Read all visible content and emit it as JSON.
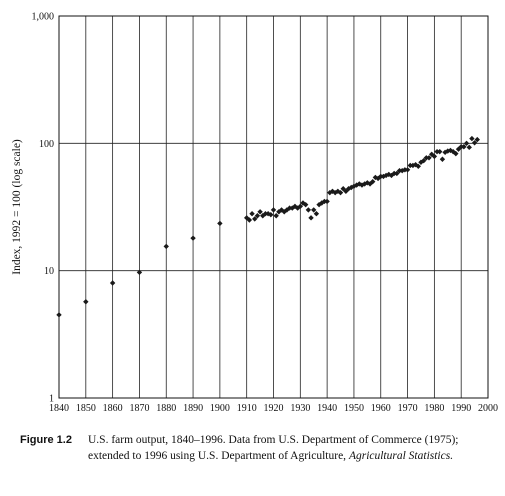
{
  "chart_data": {
    "type": "scatter",
    "ylabel": "Index, 1992 = 100 (log scale)",
    "xlabel": "",
    "yscale": "log",
    "xlim": [
      1840,
      2000
    ],
    "ylim": [
      1,
      1000
    ],
    "xticks": [
      1840,
      1850,
      1860,
      1870,
      1880,
      1890,
      1900,
      1910,
      1920,
      1930,
      1940,
      1950,
      1960,
      1970,
      1980,
      1990,
      2000
    ],
    "xtick_labels": [
      "1840",
      "1850",
      "1860",
      "1870",
      "1880",
      "1890",
      "1900",
      "1910",
      "1920",
      "1930",
      "1940",
      "1950",
      "1960",
      "1970",
      "1980",
      "1990",
      "2000"
    ],
    "yticks": [
      1,
      10,
      100,
      1000
    ],
    "ytick_labels": [
      "1",
      "10",
      "100",
      "1,000"
    ],
    "grid": "vertical at each decade, horizontal at 10 and 100",
    "marker": "diamond",
    "color": "#1a1a1a",
    "x": [
      1840,
      1850,
      1860,
      1870,
      1880,
      1890,
      1900,
      1910,
      1911,
      1912,
      1913,
      1914,
      1915,
      1916,
      1917,
      1918,
      1919,
      1920,
      1921,
      1922,
      1923,
      1924,
      1925,
      1926,
      1927,
      1928,
      1929,
      1930,
      1931,
      1932,
      1933,
      1934,
      1935,
      1936,
      1937,
      1938,
      1939,
      1940,
      1941,
      1942,
      1943,
      1944,
      1945,
      1946,
      1947,
      1948,
      1949,
      1950,
      1951,
      1952,
      1953,
      1954,
      1955,
      1956,
      1957,
      1958,
      1959,
      1960,
      1961,
      1962,
      1963,
      1964,
      1965,
      1966,
      1967,
      1968,
      1969,
      1970,
      1971,
      1972,
      1973,
      1974,
      1975,
      1976,
      1977,
      1978,
      1979,
      1980,
      1981,
      1982,
      1983,
      1984,
      1985,
      1986,
      1987,
      1988,
      1989,
      1990,
      1991,
      1992,
      1993,
      1994,
      1995,
      1996
    ],
    "y": [
      4.5,
      5.7,
      8.0,
      9.7,
      15.5,
      18.0,
      23.5,
      26,
      25,
      28,
      25.5,
      27,
      29,
      27,
      28,
      28,
      27.5,
      30,
      27,
      29,
      30,
      29,
      30,
      31,
      31,
      32,
      31,
      32,
      34,
      33,
      30,
      26,
      30,
      28,
      33,
      34,
      35,
      35,
      41,
      42,
      41,
      42,
      41,
      44,
      42,
      44,
      45,
      46,
      47,
      48,
      47,
      48,
      49,
      48,
      50,
      54,
      53,
      55,
      55,
      56,
      57,
      56,
      58,
      58,
      61,
      61,
      62,
      62,
      67,
      67,
      68,
      66,
      71,
      73,
      77,
      77,
      82,
      79,
      86,
      86,
      75,
      85,
      87,
      88,
      86,
      83,
      90,
      94,
      94,
      100,
      93,
      109,
      101,
      107
    ]
  },
  "caption": {
    "label": "Figure 1.2",
    "text_before": "U.S. farm output, 1840–1996. Data from U.S. Department of Commerce (1975); extended to 1996 using U.S. Department of Agriculture, ",
    "text_italic": "Agricultural Statistics.",
    "text_after": ""
  }
}
